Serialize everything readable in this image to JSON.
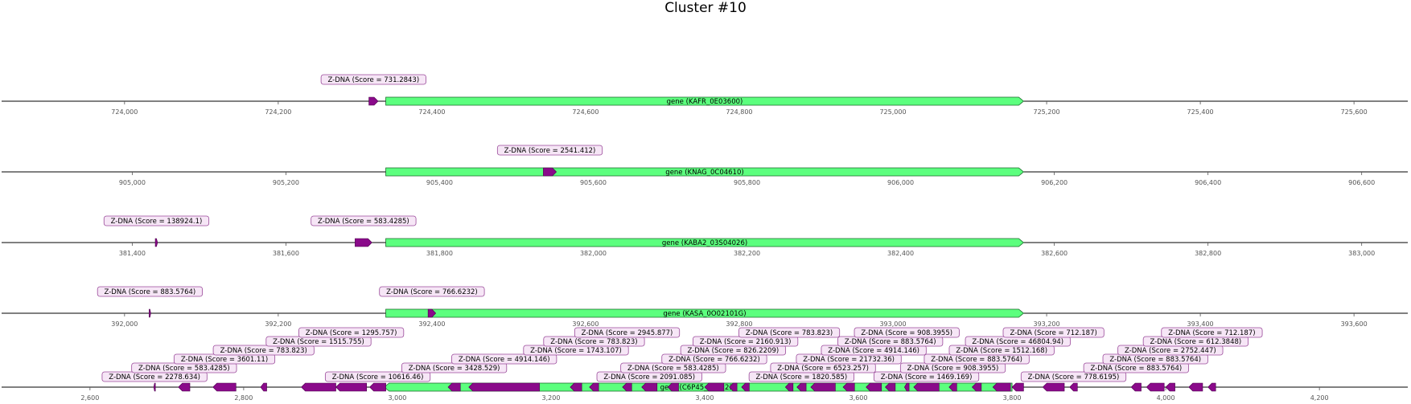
{
  "title": "Cluster #10",
  "colors": {
    "gene": "#5cff7e",
    "zdna": "#8a0a8a",
    "annotation_bg": "#f6e6f6",
    "annotation_border": "#9a4a9a"
  },
  "tracks": [
    {
      "range": [
        723840,
        725670
      ],
      "ticks": [
        724000,
        724200,
        724400,
        724600,
        724800,
        725000,
        725200,
        725400,
        725600
      ],
      "tick_labels": [
        "724,000",
        "724,200",
        "724,400",
        "724,600",
        "724,800",
        "725,000",
        "725,200",
        "725,400",
        "725,600"
      ],
      "gene": {
        "label": "gene (KAFR_0E03600)",
        "start": 724340,
        "end": 725170
      },
      "zdna": [
        {
          "label": "Z-DNA (Score = 731.2843)",
          "start": 724318,
          "end": 724330
        }
      ]
    },
    {
      "range": [
        904830,
        906660
      ],
      "ticks": [
        905000,
        905200,
        905400,
        905600,
        905800,
        906000,
        906200,
        906400,
        906600
      ],
      "tick_labels": [
        "905,000",
        "905,200",
        "905,400",
        "905,600",
        "905,800",
        "906,000",
        "906,200",
        "906,400",
        "906,600"
      ],
      "gene": {
        "label": "gene (KNAG_0C04610)",
        "start": 905330,
        "end": 906160
      },
      "zdna": [
        {
          "label": "Z-DNA (Score = 2541.412)",
          "start": 905535,
          "end": 905552
        }
      ]
    },
    {
      "range": [
        381230,
        383060
      ],
      "ticks": [
        381400,
        381600,
        381800,
        382000,
        382200,
        382400,
        382600,
        382800,
        383000
      ],
      "tick_labels": [
        "381,400",
        "381,600",
        "381,800",
        "382,000",
        "382,200",
        "382,400",
        "382,600",
        "382,800",
        "383,000"
      ],
      "gene": {
        "label": "gene (KABA2_03S04026)",
        "start": 381730,
        "end": 382560
      },
      "zdna": [
        {
          "label": "Z-DNA (Score = 138924.1)",
          "start": 381430,
          "end": 381433
        },
        {
          "label": "Z-DNA (Score = 583.4285)",
          "start": 381690,
          "end": 381712
        }
      ]
    },
    {
      "range": [
        391840,
        393670
      ],
      "ticks": [
        392000,
        392200,
        392400,
        392600,
        392800,
        393000,
        393200,
        393400,
        393600
      ],
      "tick_labels": [
        "392,000",
        "392,200",
        "392,400",
        "392,600",
        "392,800",
        "393,000",
        "393,200",
        "393,400",
        "393,600"
      ],
      "gene": {
        "label": "gene (KASA_0O02101G)",
        "start": 392340,
        "end": 393170
      },
      "zdna": [
        {
          "label": "Z-DNA (Score = 883.5764)",
          "start": 392032,
          "end": 392034
        },
        {
          "label": "Z-DNA (Score = 766.6232)",
          "start": 392395,
          "end": 392405
        }
      ]
    },
    {
      "range": [
        2485,
        4315
      ],
      "ticks": [
        2600,
        2800,
        3000,
        3200,
        3400,
        3600,
        3800,
        4000,
        4200
      ],
      "tick_labels": [
        "2,600",
        "2,800",
        "3,000",
        "3,200",
        "3,400",
        "3,600",
        "3,800",
        "4,000",
        "4,200"
      ],
      "gene": {
        "label": "gene (C6P45_002223)",
        "start": 2983,
        "end": 3800,
        "direction": "reverse"
      },
      "zdna": [
        {
          "label": "Z-DNA (Score = 2278.634)",
          "start": 2683,
          "end": 2685
        },
        {
          "label": "Z-DNA (Score = 583.4285)",
          "start": 2715,
          "end": 2730
        },
        {
          "label": "Z-DNA (Score = 3601.11)",
          "start": 2760,
          "end": 2790
        },
        {
          "label": "Z-DNA (Score = 783.823)",
          "start": 2822,
          "end": 2830
        },
        {
          "label": "Z-DNA (Score = 1515.755)",
          "start": 2875,
          "end": 2920
        },
        {
          "label": "Z-DNA (Score = 1295.757)",
          "start": 2920,
          "end": 2960
        },
        {
          "label": "Z-DNA (Score = 10616.46)",
          "start": 2964,
          "end": 2985
        },
        {
          "label": "Z-DNA (Score = 3428.529)",
          "start": 3066,
          "end": 3082
        },
        {
          "label": "Z-DNA (Score = 4914.146)",
          "start": 3093,
          "end": 3185
        },
        {
          "label": "Z-DNA (Score = 1743.107)",
          "start": 3225,
          "end": 3240
        },
        {
          "label": "Z-DNA (Score = 783.823)",
          "start": 3250,
          "end": 3262
        },
        {
          "label": "Z-DNA (Score = 2945.877)",
          "start": 3293,
          "end": 3305
        },
        {
          "label": "Z-DNA (Score = 2091.085)",
          "start": 3318,
          "end": 3338
        },
        {
          "label": "Z-DNA (Score = 583.4285)",
          "start": 3352,
          "end": 3366
        },
        {
          "label": "Z-DNA (Score = 766.6232)",
          "start": 3400,
          "end": 3425
        },
        {
          "label": "Z-DNA (Score = 826.2209)",
          "start": 3432,
          "end": 3442
        },
        {
          "label": "Z-DNA (Score = 2160.913)",
          "start": 3448,
          "end": 3458
        },
        {
          "label": "Z-DNA (Score = 783.823)",
          "start": 3505,
          "end": 3515
        },
        {
          "label": "Z-DNA (Score = 1820.585)",
          "start": 3520,
          "end": 3532
        },
        {
          "label": "Z-DNA (Score = 6523.257)",
          "start": 3538,
          "end": 3570
        },
        {
          "label": "Z-DNA (Score = 21732.36)",
          "start": 3580,
          "end": 3595
        },
        {
          "label": "Z-DNA (Score = 4914.146)",
          "start": 3610,
          "end": 3630
        },
        {
          "label": "Z-DNA (Score = 883.5764)",
          "start": 3635,
          "end": 3648
        },
        {
          "label": "Z-DNA (Score = 908.3955)",
          "start": 3660,
          "end": 3666
        },
        {
          "label": "Z-DNA (Score = 1469.169)",
          "start": 3672,
          "end": 3705
        },
        {
          "label": "Z-DNA (Score = 908.3955)",
          "start": 3718,
          "end": 3728
        },
        {
          "label": "Z-DNA (Score = 883.5764)",
          "start": 3748,
          "end": 3760
        },
        {
          "label": "Z-DNA (Score = 1512.168)",
          "start": 3775,
          "end": 3798
        },
        {
          "label": "Z-DNA (Score = 46804.94)",
          "start": 3800,
          "end": 3815
        },
        {
          "label": "Z-DNA (Score = 712.187)",
          "start": 3840,
          "end": 3868
        },
        {
          "label": "Z-DNA (Score = 778.6195)",
          "start": 3875,
          "end": 3885
        },
        {
          "label": "Z-DNA (Score = 883.5764)",
          "start": 3955,
          "end": 3968
        },
        {
          "label": "Z-DNA (Score = 883.5764)",
          "start": 3975,
          "end": 3998
        },
        {
          "label": "Z-DNA (Score = 2752.447)",
          "start": 4000,
          "end": 4012
        },
        {
          "label": "Z-DNA (Score = 612.3848)",
          "start": 4030,
          "end": 4048
        },
        {
          "label": "Z-DNA (Score = 712.187)",
          "start": 4055,
          "end": 4065
        }
      ]
    }
  ]
}
